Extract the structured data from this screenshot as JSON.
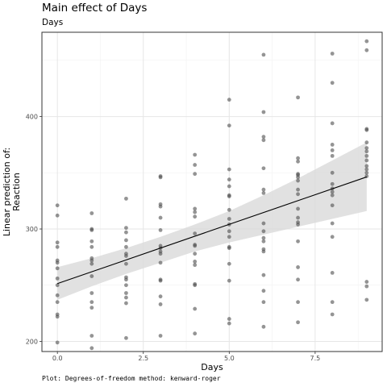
{
  "colors": {
    "point": "#4d4d4d",
    "ribbon": "#d9d9d9",
    "line": "#000000",
    "grid_major": "#e6e6e6",
    "grid_minor": "#f2f2f2",
    "panel_border": "#333333"
  },
  "chart_data": {
    "type": "scatter",
    "title": "Main effect of Days",
    "subtitle": "Days",
    "xlabel": "Days",
    "ylabel": [
      "Linear prediction of:",
      "Reaction"
    ],
    "caption": "Plot: Degrees-of-freedom method: kenward-roger",
    "xlim": [
      -0.45,
      9.45
    ],
    "ylim": [
      191,
      475
    ],
    "x_ticks": [
      0,
      2.5,
      5,
      7.5
    ],
    "x_tick_labels": [
      "0.0",
      "2.5",
      "5.0",
      "7.5"
    ],
    "y_ticks": [
      200,
      300,
      400
    ],
    "y_tick_labels": [
      "200",
      "300",
      "400"
    ],
    "grid": true,
    "fit_line": {
      "x": [
        0,
        9
      ],
      "y": [
        251.4,
        346.3
      ]
    },
    "ribbon": {
      "x": [
        0,
        1,
        2,
        3,
        4,
        5,
        6,
        7,
        8,
        9
      ],
      "lower": [
        237.0,
        249.0,
        260.0,
        270.0,
        280.0,
        288.0,
        295.0,
        302.0,
        309.0,
        316.0
      ],
      "upper": [
        266.0,
        274.0,
        283.0,
        293.0,
        304.0,
        316.0,
        330.0,
        345.0,
        361.0,
        377.0
      ]
    },
    "points": [
      [
        0,
        199
      ],
      [
        0,
        222
      ],
      [
        0,
        224
      ],
      [
        0,
        235
      ],
      [
        0,
        241
      ],
      [
        0,
        250
      ],
      [
        0,
        256
      ],
      [
        0,
        265
      ],
      [
        0,
        270
      ],
      [
        0,
        272
      ],
      [
        0,
        284
      ],
      [
        0,
        288
      ],
      [
        0,
        312
      ],
      [
        0,
        321
      ],
      [
        1,
        194
      ],
      [
        1,
        205
      ],
      [
        1,
        230
      ],
      [
        1,
        235
      ],
      [
        1,
        243
      ],
      [
        1,
        258
      ],
      [
        1,
        269
      ],
      [
        1,
        272
      ],
      [
        1,
        274
      ],
      [
        1,
        284
      ],
      [
        1,
        289
      ],
      [
        1,
        299
      ],
      [
        1,
        300
      ],
      [
        1,
        314
      ],
      [
        2,
        203
      ],
      [
        2,
        234
      ],
      [
        2,
        239
      ],
      [
        2,
        243
      ],
      [
        2,
        250
      ],
      [
        2,
        255
      ],
      [
        2,
        257
      ],
      [
        2,
        269
      ],
      [
        2,
        276
      ],
      [
        2,
        278
      ],
      [
        2,
        284
      ],
      [
        2,
        290
      ],
      [
        2,
        297
      ],
      [
        2,
        301
      ],
      [
        2,
        327
      ],
      [
        3,
        205
      ],
      [
        3,
        233
      ],
      [
        3,
        240
      ],
      [
        3,
        254
      ],
      [
        3,
        255
      ],
      [
        3,
        270
      ],
      [
        3,
        278
      ],
      [
        3,
        280
      ],
      [
        3,
        283
      ],
      [
        3,
        285
      ],
      [
        3,
        299
      ],
      [
        3,
        310
      ],
      [
        3,
        320
      ],
      [
        3,
        322
      ],
      [
        3,
        346
      ],
      [
        3,
        347
      ],
      [
        4,
        207
      ],
      [
        4,
        229
      ],
      [
        4,
        250
      ],
      [
        4,
        251
      ],
      [
        4,
        268
      ],
      [
        4,
        271
      ],
      [
        4,
        278
      ],
      [
        4,
        285
      ],
      [
        4,
        286
      ],
      [
        4,
        296
      ],
      [
        4,
        311
      ],
      [
        4,
        315
      ],
      [
        4,
        318
      ],
      [
        4,
        349
      ],
      [
        4,
        357
      ],
      [
        4,
        366
      ],
      [
        5,
        216
      ],
      [
        5,
        220
      ],
      [
        5,
        254
      ],
      [
        5,
        269
      ],
      [
        5,
        283
      ],
      [
        5,
        284
      ],
      [
        5,
        293
      ],
      [
        5,
        298
      ],
      [
        5,
        304
      ],
      [
        5,
        309
      ],
      [
        5,
        317
      ],
      [
        5,
        329
      ],
      [
        5,
        330
      ],
      [
        5,
        338
      ],
      [
        5,
        344
      ],
      [
        5,
        353
      ],
      [
        5,
        392
      ],
      [
        5,
        415
      ],
      [
        6,
        213
      ],
      [
        6,
        235
      ],
      [
        6,
        245
      ],
      [
        6,
        259
      ],
      [
        6,
        280
      ],
      [
        6,
        282
      ],
      [
        6,
        289
      ],
      [
        6,
        292
      ],
      [
        6,
        298
      ],
      [
        6,
        305
      ],
      [
        6,
        332
      ],
      [
        6,
        335
      ],
      [
        6,
        354
      ],
      [
        6,
        379
      ],
      [
        6,
        382
      ],
      [
        6,
        404
      ],
      [
        6,
        455
      ],
      [
        7,
        217
      ],
      [
        7,
        235
      ],
      [
        7,
        255
      ],
      [
        7,
        266
      ],
      [
        7,
        289
      ],
      [
        7,
        304
      ],
      [
        7,
        306
      ],
      [
        7,
        310
      ],
      [
        7,
        318
      ],
      [
        7,
        331
      ],
      [
        7,
        335
      ],
      [
        7,
        343
      ],
      [
        7,
        346
      ],
      [
        7,
        348
      ],
      [
        7,
        349
      ],
      [
        7,
        360
      ],
      [
        7,
        363
      ],
      [
        7,
        417
      ],
      [
        8,
        224
      ],
      [
        8,
        235
      ],
      [
        8,
        261
      ],
      [
        8,
        293
      ],
      [
        8,
        305
      ],
      [
        8,
        321
      ],
      [
        8,
        330
      ],
      [
        8,
        333
      ],
      [
        8,
        336
      ],
      [
        8,
        340
      ],
      [
        8,
        350
      ],
      [
        8,
        365
      ],
      [
        8,
        370
      ],
      [
        8,
        375
      ],
      [
        8,
        394
      ],
      [
        8,
        430
      ],
      [
        8,
        456
      ],
      [
        9,
        237
      ],
      [
        9,
        249
      ],
      [
        9,
        253
      ],
      [
        9,
        347
      ],
      [
        9,
        350
      ],
      [
        9,
        353
      ],
      [
        9,
        356
      ],
      [
        9,
        361
      ],
      [
        9,
        365
      ],
      [
        9,
        369
      ],
      [
        9,
        372
      ],
      [
        9,
        377
      ],
      [
        9,
        388
      ],
      [
        9,
        389
      ],
      [
        9,
        459
      ],
      [
        9,
        467
      ]
    ]
  }
}
